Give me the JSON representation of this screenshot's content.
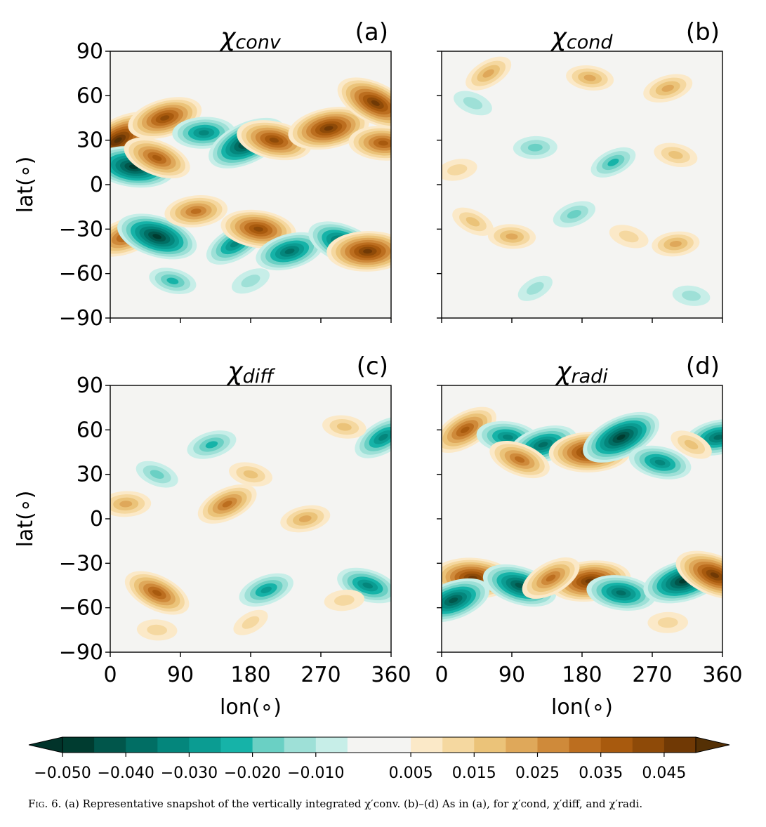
{
  "chart_data": [
    {
      "type": "heatmap",
      "panel_label": "(a)",
      "title": "χconv",
      "title_base": "χ",
      "title_sub": "conv",
      "xlabel": "",
      "ylabel": "lat(∘)",
      "xlim": [
        0,
        360
      ],
      "ylim": [
        -90,
        90
      ],
      "xticks": [
        0,
        90,
        180,
        270,
        360
      ],
      "yticks": [
        -90,
        -60,
        -30,
        0,
        30,
        60,
        90
      ],
      "xtick_labels_shown": false,
      "ytick_labels_shown": true,
      "features": [
        {
          "lon": 10,
          "lat": 30,
          "value": 0.048
        },
        {
          "lon": 30,
          "lat": 12,
          "value": -0.045
        },
        {
          "lon": 70,
          "lat": 45,
          "value": 0.04
        },
        {
          "lon": 60,
          "lat": 18,
          "value": 0.035
        },
        {
          "lon": 120,
          "lat": 35,
          "value": -0.03
        },
        {
          "lon": 175,
          "lat": 28,
          "value": -0.045
        },
        {
          "lon": 210,
          "lat": 30,
          "value": 0.04
        },
        {
          "lon": 280,
          "lat": 38,
          "value": 0.045
        },
        {
          "lon": 340,
          "lat": 55,
          "value": 0.045
        },
        {
          "lon": 350,
          "lat": 28,
          "value": 0.035
        },
        {
          "lon": 20,
          "lat": -35,
          "value": 0.035
        },
        {
          "lon": 60,
          "lat": -35,
          "value": -0.045
        },
        {
          "lon": 110,
          "lat": -18,
          "value": 0.03
        },
        {
          "lon": 160,
          "lat": -40,
          "value": -0.03
        },
        {
          "lon": 190,
          "lat": -30,
          "value": 0.04
        },
        {
          "lon": 230,
          "lat": -45,
          "value": -0.035
        },
        {
          "lon": 300,
          "lat": -40,
          "value": -0.04
        },
        {
          "lon": 330,
          "lat": -45,
          "value": 0.045
        },
        {
          "lon": 180,
          "lat": -65,
          "value": -0.012
        },
        {
          "lon": 80,
          "lat": -65,
          "value": -0.018
        }
      ]
    },
    {
      "type": "heatmap",
      "panel_label": "(b)",
      "title": "χcond",
      "title_base": "χ",
      "title_sub": "cond",
      "xlabel": "",
      "ylabel": "",
      "xlim": [
        0,
        360
      ],
      "ylim": [
        -90,
        90
      ],
      "xticks": [
        0,
        90,
        180,
        270,
        360
      ],
      "yticks": [
        -90,
        -60,
        -30,
        0,
        30,
        60,
        90
      ],
      "xtick_labels_shown": false,
      "ytick_labels_shown": false,
      "features": [
        {
          "lon": 60,
          "lat": 75,
          "value": 0.02
        },
        {
          "lon": 190,
          "lat": 72,
          "value": 0.018
        },
        {
          "lon": 290,
          "lat": 65,
          "value": 0.02
        },
        {
          "lon": 40,
          "lat": 55,
          "value": -0.012
        },
        {
          "lon": 120,
          "lat": 25,
          "value": -0.015
        },
        {
          "lon": 220,
          "lat": 15,
          "value": -0.018
        },
        {
          "lon": 300,
          "lat": 20,
          "value": 0.015
        },
        {
          "lon": 20,
          "lat": 10,
          "value": 0.012
        },
        {
          "lon": 40,
          "lat": -25,
          "value": 0.015
        },
        {
          "lon": 90,
          "lat": -35,
          "value": 0.018
        },
        {
          "lon": 170,
          "lat": -20,
          "value": -0.015
        },
        {
          "lon": 240,
          "lat": -35,
          "value": 0.012
        },
        {
          "lon": 300,
          "lat": -40,
          "value": 0.018
        },
        {
          "lon": 120,
          "lat": -70,
          "value": -0.01
        },
        {
          "lon": 320,
          "lat": -75,
          "value": -0.01
        }
      ]
    },
    {
      "type": "heatmap",
      "panel_label": "(c)",
      "title": "χdiff",
      "title_base": "χ",
      "title_sub": "diff",
      "xlabel": "lon(∘)",
      "ylabel": "lat(∘)",
      "xlim": [
        0,
        360
      ],
      "ylim": [
        -90,
        90
      ],
      "xticks": [
        0,
        90,
        180,
        270,
        360
      ],
      "yticks": [
        -90,
        -60,
        -30,
        0,
        30,
        60,
        90
      ],
      "xtick_labels_shown": true,
      "ytick_labels_shown": true,
      "features": [
        {
          "lon": 350,
          "lat": 55,
          "value": -0.03
        },
        {
          "lon": 300,
          "lat": 62,
          "value": 0.015
        },
        {
          "lon": 130,
          "lat": 50,
          "value": -0.02
        },
        {
          "lon": 60,
          "lat": 30,
          "value": -0.015
        },
        {
          "lon": 20,
          "lat": 10,
          "value": 0.02
        },
        {
          "lon": 150,
          "lat": 10,
          "value": 0.03
        },
        {
          "lon": 180,
          "lat": 30,
          "value": 0.015
        },
        {
          "lon": 250,
          "lat": 0,
          "value": 0.02
        },
        {
          "lon": 60,
          "lat": -50,
          "value": 0.035
        },
        {
          "lon": 60,
          "lat": -75,
          "value": 0.012
        },
        {
          "lon": 200,
          "lat": -48,
          "value": -0.025
        },
        {
          "lon": 330,
          "lat": -45,
          "value": -0.03
        },
        {
          "lon": 300,
          "lat": -55,
          "value": 0.012
        },
        {
          "lon": 180,
          "lat": -70,
          "value": 0.01
        }
      ]
    },
    {
      "type": "heatmap",
      "panel_label": "(d)",
      "title": "χradi",
      "title_base": "χ",
      "title_sub": "radi",
      "xlabel": "lon(∘)",
      "ylabel": "",
      "xlim": [
        0,
        360
      ],
      "ylim": [
        -90,
        90
      ],
      "xticks": [
        0,
        90,
        180,
        270,
        360
      ],
      "yticks": [
        -90,
        -60,
        -30,
        0,
        30,
        60,
        90
      ],
      "xtick_labels_shown": true,
      "ytick_labels_shown": false,
      "features": [
        {
          "lon": 30,
          "lat": 60,
          "value": 0.035
        },
        {
          "lon": 85,
          "lat": 55,
          "value": -0.03
        },
        {
          "lon": 130,
          "lat": 50,
          "value": -0.035
        },
        {
          "lon": 100,
          "lat": 40,
          "value": 0.03
        },
        {
          "lon": 190,
          "lat": 45,
          "value": 0.045
        },
        {
          "lon": 230,
          "lat": 55,
          "value": -0.045
        },
        {
          "lon": 280,
          "lat": 38,
          "value": -0.03
        },
        {
          "lon": 355,
          "lat": 55,
          "value": -0.035
        },
        {
          "lon": 320,
          "lat": 50,
          "value": 0.015
        },
        {
          "lon": 40,
          "lat": -40,
          "value": 0.045
        },
        {
          "lon": 15,
          "lat": -55,
          "value": -0.04
        },
        {
          "lon": 100,
          "lat": -45,
          "value": -0.04
        },
        {
          "lon": 190,
          "lat": -42,
          "value": 0.045
        },
        {
          "lon": 140,
          "lat": -40,
          "value": 0.03
        },
        {
          "lon": 230,
          "lat": -50,
          "value": -0.035
        },
        {
          "lon": 310,
          "lat": -42,
          "value": -0.045
        },
        {
          "lon": 350,
          "lat": -38,
          "value": 0.045
        },
        {
          "lon": 290,
          "lat": -70,
          "value": 0.012
        }
      ]
    }
  ],
  "colorbar": {
    "colormap": "BrBG_r",
    "levels": [
      -0.05,
      -0.045,
      -0.04,
      -0.035,
      -0.03,
      -0.025,
      -0.02,
      -0.015,
      -0.01,
      -0.005,
      0.005,
      0.01,
      0.015,
      0.02,
      0.025,
      0.03,
      0.035,
      0.04,
      0.045,
      0.05
    ],
    "tick_labels": [
      "−0.050",
      "−0.040",
      "−0.030",
      "−0.020",
      "−0.010",
      "0.005",
      "0.015",
      "0.025",
      "0.035",
      "0.045"
    ],
    "tick_values": [
      -0.05,
      -0.04,
      -0.03,
      -0.02,
      -0.01,
      0.005,
      0.015,
      0.025,
      0.035,
      0.045
    ],
    "colors": [
      "#003c30",
      "#01564b",
      "#016e64",
      "#04867c",
      "#0b9c92",
      "#16b3a8",
      "#6ad0c4",
      "#9ee0d7",
      "#c7eee8",
      "#f4f4f2",
      "#fbe9c8",
      "#f5d8a0",
      "#ebc379",
      "#dfa85a",
      "#cf8a3a",
      "#bc6e1f",
      "#a85a0e",
      "#8e4a08",
      "#703905"
    ],
    "under_color": "#01332a",
    "over_color": "#543005",
    "extend": "both"
  },
  "caption": {
    "fig_label": "Fig. 6.",
    "text": "(a) Representative snapshot of the vertically integrated χ′conv. (b)–(d) As in (a), for χ′cond, χ′diff, and χ′radi."
  }
}
